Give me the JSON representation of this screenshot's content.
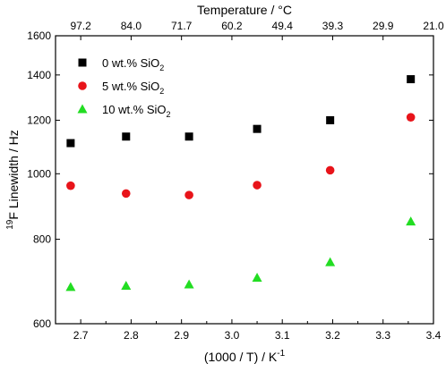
{
  "chart_data": {
    "type": "scatter",
    "title": "",
    "xlabel": "(1000 / T) / K",
    "xlabel_sup": "-1",
    "ylabel": "F Linewidth / Hz",
    "ylabel_sup": "19",
    "top_xlabel": "Temperature / °C",
    "xlim": [
      2.65,
      3.4
    ],
    "ylim": [
      600,
      1600
    ],
    "y_scale": "log",
    "x_ticks": [
      "2.7",
      "2.8",
      "2.9",
      "3.0",
      "3.1",
      "3.2",
      "3.3",
      "3.4"
    ],
    "y_ticks": [
      "600",
      "800",
      "1000",
      "1200",
      "1400",
      "1600"
    ],
    "top_ticks": [
      "97.2",
      "84.0",
      "71.7",
      "60.2",
      "49.4",
      "39.3",
      "29.9",
      "21.0"
    ],
    "legend_position": "top-left",
    "series": [
      {
        "name": "0 wt.% SiO",
        "name_sub": "2",
        "marker": "square",
        "color": "#000000",
        "x": [
          2.68,
          2.79,
          2.915,
          3.05,
          3.195,
          3.355
        ],
        "y": [
          1110,
          1135,
          1135,
          1165,
          1200,
          1380
        ]
      },
      {
        "name": "5 wt.% SiO",
        "name_sub": "2",
        "marker": "circle",
        "color": "#e8141a",
        "x": [
          2.68,
          2.79,
          2.915,
          3.05,
          3.195,
          3.355
        ],
        "y": [
          960,
          935,
          930,
          962,
          1012,
          1212
        ]
      },
      {
        "name": "10 wt.% SiO",
        "name_sub": "2",
        "marker": "triangle",
        "color": "#22dd22",
        "x": [
          2.68,
          2.79,
          2.915,
          3.05,
          3.195,
          3.355
        ],
        "y": [
          680,
          683,
          686,
          702,
          740,
          850
        ]
      }
    ]
  }
}
